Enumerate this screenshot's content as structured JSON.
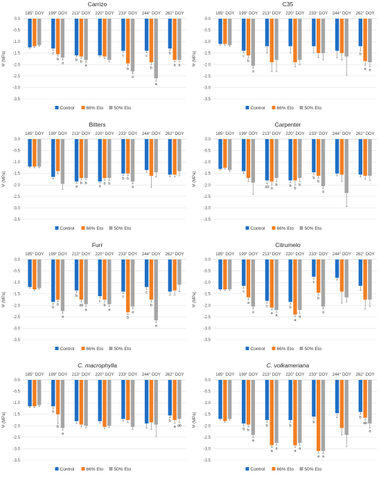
{
  "legend": [
    "Control",
    "66% Eto",
    "50% Eto"
  ],
  "colors": {
    "control": "#1f6fc5",
    "eto66": "#f27e22",
    "eto50": "#a5a5a5",
    "grid": "#e2e2e2",
    "axis": "#bdbdbd"
  },
  "chart_data": [
    {
      "type": "bar",
      "title": "Carrizo",
      "italic": false,
      "ylabel": "Ψ (MPa)",
      "ylim": [
        -3.5,
        0.0
      ],
      "yticks": [
        "0.0",
        "-0.5",
        "-1.0",
        "-1.5",
        "-2.0",
        "-2.5",
        "-3.0",
        "-3.5"
      ],
      "categories": [
        "185° DOY",
        "199° DOY",
        "213° DOY",
        "220° DOY",
        "233° DOY",
        "244° DOY",
        "262° DOY"
      ],
      "series": [
        {
          "name": "Control",
          "values": [
            -1.25,
            -1.3,
            -1.6,
            -1.6,
            -1.4,
            -1.4,
            -1.3
          ],
          "errors": [
            0.05,
            0.08,
            0.06,
            0.06,
            0.06,
            0.08,
            0.08
          ]
        },
        {
          "name": "66% Eto",
          "values": [
            -1.2,
            -1.55,
            -1.65,
            -1.65,
            -1.95,
            -1.9,
            -1.8
          ],
          "errors": [
            0.05,
            0.08,
            0.08,
            0.08,
            0.1,
            0.1,
            0.08
          ]
        },
        {
          "name": "50% Eto",
          "values": [
            -1.15,
            -1.7,
            -1.8,
            -1.8,
            -2.3,
            -2.6,
            -1.8
          ],
          "errors": [
            0.05,
            0.1,
            0.1,
            0.08,
            0.1,
            0.12,
            0.08
          ]
        }
      ],
      "letters": [
        [
          "",
          "",
          ""
        ],
        [
          "c",
          "b",
          "a"
        ],
        [
          "b",
          "b",
          "a"
        ],
        [
          "",
          "",
          ""
        ],
        [
          "c",
          "b",
          "a"
        ],
        [
          "c",
          "b",
          "a"
        ],
        [
          "b",
          "a",
          "a"
        ]
      ]
    },
    {
      "type": "bar",
      "title": "C35",
      "italic": false,
      "ylabel": "Ψ (MPa)",
      "ylim": [
        -3.5,
        0.0
      ],
      "yticks": [
        "0.0",
        "-0.5",
        "-1.0",
        "-1.5",
        "-2.0",
        "-2.5",
        "-3.0",
        "-3.5"
      ],
      "categories": [
        "185° DOY",
        "199° DOY",
        "213° DOY",
        "220° DOY",
        "233° DOY",
        "244° DOY",
        "262° DOY"
      ],
      "series": [
        {
          "name": "Control",
          "values": [
            -1.1,
            -1.4,
            -1.2,
            -1.2,
            -1.2,
            -1.4,
            -1.2
          ],
          "errors": [
            0.05,
            0.1,
            0.3,
            0.3,
            0.3,
            0.3,
            0.2
          ]
        },
        {
          "name": "66% Eto",
          "values": [
            -1.1,
            -1.6,
            -1.9,
            -1.9,
            -1.5,
            -1.5,
            -1.85
          ],
          "errors": [
            0.05,
            0.1,
            0.4,
            0.2,
            0.2,
            0.3,
            0.2
          ]
        },
        {
          "name": "50% Eto",
          "values": [
            -1.15,
            -2.05,
            -1.8,
            -1.8,
            -1.5,
            -1.65,
            -1.9
          ],
          "errors": [
            0.05,
            0.1,
            0.5,
            0.2,
            0.3,
            0.8,
            0.2
          ]
        }
      ],
      "letters": [
        [
          "",
          "",
          ""
        ],
        [
          "c",
          "b",
          "a"
        ],
        [
          "",
          "",
          ""
        ],
        [
          "",
          "",
          ""
        ],
        [
          "",
          "",
          ""
        ],
        [
          "",
          "",
          ""
        ],
        [
          "b",
          "a",
          "a"
        ]
      ]
    },
    {
      "type": "bar",
      "title": "Bitters",
      "italic": false,
      "ylabel": "Ψ (MPa)",
      "ylim": [
        -3.5,
        0.0
      ],
      "yticks": [
        "0.0",
        "-0.5",
        "-1.0",
        "-1.5",
        "-2.0",
        "-2.5",
        "-3.0",
        "-3.5"
      ],
      "categories": [
        "185° DOY",
        "199° DOY",
        "213° DOY",
        "220° DOY",
        "233° DOY",
        "244° DOY",
        "262° DOY"
      ],
      "series": [
        {
          "name": "Control",
          "values": [
            -1.2,
            -1.65,
            -1.85,
            -1.85,
            -1.5,
            -1.35,
            -1.55
          ],
          "errors": [
            0.05,
            0.08,
            0.08,
            0.06,
            0.08,
            0.1,
            0.1
          ]
        },
        {
          "name": "66% Eto",
          "values": [
            -1.2,
            -1.4,
            -1.7,
            -1.7,
            -1.5,
            -1.6,
            -1.55
          ],
          "errors": [
            0.05,
            0.1,
            0.08,
            0.1,
            0.08,
            0.5,
            0.1
          ]
        },
        {
          "name": "50% Eto",
          "values": [
            -1.2,
            -1.95,
            -1.7,
            -1.7,
            -1.85,
            -1.45,
            -1.4
          ],
          "errors": [
            0.05,
            0.25,
            0.08,
            0.1,
            0.1,
            0.2,
            0.2
          ]
        }
      ],
      "letters": [
        [
          "",
          "",
          ""
        ],
        [
          "",
          "",
          ""
        ],
        [
          "a",
          "b",
          "b"
        ],
        [
          "a",
          "b",
          "b"
        ],
        [
          "b",
          "b",
          "a"
        ],
        [
          "",
          "",
          ""
        ],
        [
          "",
          "",
          ""
        ]
      ]
    },
    {
      "type": "bar",
      "title": "Carpenter",
      "italic": false,
      "ylabel": "Ψ (MPa)",
      "ylim": [
        -3.5,
        0.0
      ],
      "yticks": [
        "0.0",
        "-0.5",
        "-1.0",
        "-1.5",
        "-2.0",
        "-2.5",
        "-3.0",
        "-3.5"
      ],
      "categories": [
        "185° DOY",
        "199° DOY",
        "213° DOY",
        "220° DOY",
        "233° DOY",
        "244° DOY",
        "262° DOY"
      ],
      "series": [
        {
          "name": "Control",
          "values": [
            -1.3,
            -1.4,
            -1.8,
            -1.8,
            -1.45,
            -1.5,
            -1.55
          ],
          "errors": [
            0.05,
            0.1,
            0.15,
            0.1,
            0.1,
            0.1,
            0.1
          ]
        },
        {
          "name": "66% Eto",
          "values": [
            -1.25,
            -1.7,
            -1.85,
            -1.8,
            -1.6,
            -1.55,
            -1.6
          ],
          "errors": [
            0.05,
            0.15,
            0.15,
            0.2,
            0.1,
            0.3,
            0.15
          ]
        },
        {
          "name": "50% Eto",
          "values": [
            -1.35,
            -1.9,
            -1.7,
            -1.7,
            -2.05,
            -2.35,
            -1.6
          ],
          "errors": [
            0.05,
            0.5,
            0.15,
            0.15,
            0.1,
            0.6,
            0.2
          ]
        }
      ],
      "letters": [
        [
          "",
          "",
          ""
        ],
        [
          "",
          "",
          ""
        ],
        [
          "ab",
          "a",
          "b"
        ],
        [
          "b",
          "b",
          "b"
        ],
        [
          "b",
          "b",
          "a"
        ],
        [
          "",
          "",
          ""
        ],
        [
          "",
          "",
          ""
        ]
      ]
    },
    {
      "type": "bar",
      "title": "Furr",
      "italic": false,
      "ylabel": "Ψ (MPa)",
      "ylim": [
        -3.5,
        0.0
      ],
      "yticks": [
        "0.0",
        "-0.5",
        "-1.0",
        "-1.5",
        "-2.0",
        "-2.5",
        "-3.0",
        "-3.5"
      ],
      "categories": [
        "185° DOY",
        "199° DOY",
        "213° DOY",
        "220° DOY",
        "233° DOY",
        "244° DOY",
        "262° DOY"
      ],
      "series": [
        {
          "name": "Control",
          "values": [
            -1.2,
            -1.85,
            -1.35,
            -1.6,
            -1.4,
            -1.2,
            -1.4
          ],
          "errors": [
            0.05,
            0.1,
            0.1,
            0.08,
            0.08,
            0.1,
            0.15
          ]
        },
        {
          "name": "66% Eto",
          "values": [
            -1.3,
            -1.75,
            -1.75,
            -1.75,
            -2.3,
            -1.75,
            -1.35
          ],
          "errors": [
            0.05,
            0.08,
            0.1,
            0.1,
            0.1,
            0.1,
            0.2
          ]
        },
        {
          "name": "50% Eto",
          "values": [
            -1.25,
            -2.25,
            -1.95,
            -1.95,
            -2.05,
            -2.65,
            -1.1
          ],
          "errors": [
            0.05,
            0.1,
            0.1,
            0.1,
            0.1,
            0.1,
            0.3
          ]
        }
      ],
      "letters": [
        [
          "",
          "",
          ""
        ],
        [
          "b",
          "b",
          "a"
        ],
        [
          "b",
          "ab",
          "a"
        ],
        [
          "c",
          "b",
          "a"
        ],
        [
          "c",
          "b",
          "a"
        ],
        [
          "c",
          "b",
          "a"
        ],
        [
          "",
          "",
          ""
        ]
      ]
    },
    {
      "type": "bar",
      "title": "Citrumelo",
      "italic": false,
      "ylabel": "Ψ (MPa)",
      "ylim": [
        -3.5,
        0.0
      ],
      "yticks": [
        "0.0",
        "-0.5",
        "-1.0",
        "-1.5",
        "-2.0",
        "-2.5",
        "-3.0",
        "-3.5"
      ],
      "categories": [
        "185° DOY",
        "199° DOY",
        "213° DOY",
        "220° DOY",
        "233° DOY",
        "244° DOY",
        "262° DOY"
      ],
      "series": [
        {
          "name": "Control",
          "values": [
            -1.3,
            -1.15,
            -1.8,
            -1.85,
            -0.75,
            -0.8,
            -1.15
          ],
          "errors": [
            0.05,
            0.1,
            0.1,
            0.1,
            0.1,
            0.1,
            0.2
          ]
        },
        {
          "name": "66% Eto",
          "values": [
            -1.3,
            -1.65,
            -2.1,
            -2.4,
            -1.45,
            -1.4,
            -1.75
          ],
          "errors": [
            0.05,
            0.1,
            0.1,
            0.1,
            0.1,
            0.5,
            0.4
          ]
        },
        {
          "name": "50% Eto",
          "values": [
            -1.3,
            -2.05,
            -2.2,
            -2.2,
            -2.05,
            -1.65,
            -1.75
          ],
          "errors": [
            0.05,
            0.1,
            0.1,
            0.15,
            0.1,
            0.2,
            0.3
          ]
        }
      ],
      "letters": [
        [
          "",
          "",
          ""
        ],
        [
          "c",
          "a",
          "a"
        ],
        [
          "c",
          "a",
          "a"
        ],
        [
          "b",
          "a",
          "a"
        ],
        [
          "c",
          "b",
          "a"
        ],
        [
          "",
          "",
          ""
        ],
        [
          "",
          "",
          ""
        ]
      ]
    },
    {
      "type": "bar",
      "title": "C. macrophylla",
      "italic": true,
      "ylabel": "Ψ (MPa)",
      "ylim": [
        -3.5,
        0.0
      ],
      "yticks": [
        "0.0",
        "-0.5",
        "-1.0",
        "-1.5",
        "-2.0",
        "-2.5",
        "-3.0",
        "-3.5"
      ],
      "categories": [
        "185° DOY",
        "199° DOY",
        "213° DOY",
        "220° DOY",
        "233° DOY",
        "244° DOY",
        "262° DOY"
      ],
      "series": [
        {
          "name": "Control",
          "values": [
            -1.15,
            -1.15,
            -1.8,
            -1.8,
            -1.7,
            -1.9,
            -1.55
          ],
          "errors": [
            0.05,
            0.1,
            0.1,
            0.08,
            0.1,
            0.2,
            0.1
          ]
        },
        {
          "name": "66% Eto",
          "values": [
            -1.15,
            -1.5,
            -1.95,
            -2.05,
            -1.75,
            -1.85,
            -1.75
          ],
          "errors": [
            0.05,
            0.4,
            0.1,
            0.08,
            0.1,
            0.3,
            0.15
          ]
        },
        {
          "name": "50% Eto",
          "values": [
            -1.1,
            -2.1,
            -2.0,
            -2.0,
            -2.05,
            -1.95,
            -1.7
          ],
          "errors": [
            0.05,
            0.1,
            0.1,
            0.08,
            0.1,
            0.5,
            0.15
          ]
        }
      ],
      "letters": [
        [
          "",
          "",
          ""
        ],
        [
          "b",
          "b",
          "a"
        ],
        [
          "",
          "",
          ""
        ],
        [
          "",
          "",
          ""
        ],
        [
          "",
          "",
          ""
        ],
        [
          "",
          "",
          ""
        ],
        [
          "b",
          "a",
          "ab"
        ]
      ]
    },
    {
      "type": "bar",
      "title": "C. volkameriana",
      "italic": true,
      "ylabel": "Ψ (MPa)",
      "ylim": [
        -3.5,
        0.0
      ],
      "yticks": [
        "0.0",
        "-0.5",
        "-1.0",
        "-1.5",
        "-2.0",
        "-2.5",
        "-3.0",
        "-3.5"
      ],
      "categories": [
        "185° DOY",
        "199° DOY",
        "213° DOY",
        "220° DOY",
        "233° DOY",
        "244° DOY",
        "262° DOY"
      ],
      "series": [
        {
          "name": "Control",
          "values": [
            -1.7,
            -1.9,
            -1.75,
            -1.75,
            -1.6,
            -1.45,
            -1.4
          ],
          "errors": [
            0.05,
            0.1,
            0.1,
            0.1,
            0.1,
            0.2,
            0.1
          ]
        },
        {
          "name": "66% Eto",
          "values": [
            -1.8,
            -1.95,
            -2.85,
            -2.85,
            -3.1,
            -2.1,
            -1.65
          ],
          "errors": [
            0.05,
            0.1,
            0.1,
            0.1,
            0.1,
            0.3,
            0.1
          ]
        },
        {
          "name": "50% Eto",
          "values": [
            -1.7,
            -2.4,
            -2.75,
            -2.75,
            -3.1,
            -2.4,
            -1.9
          ],
          "errors": [
            0.05,
            0.1,
            0.1,
            0.1,
            0.1,
            0.5,
            0.2
          ]
        }
      ],
      "letters": [
        [
          "",
          "",
          ""
        ],
        [
          "b",
          "b",
          "a"
        ],
        [
          "b",
          "a",
          "a"
        ],
        [
          "b",
          "a",
          "a"
        ],
        [
          "b",
          "a",
          "a"
        ],
        [
          "",
          "",
          ""
        ],
        [
          "b",
          "ab",
          "a"
        ]
      ]
    }
  ]
}
